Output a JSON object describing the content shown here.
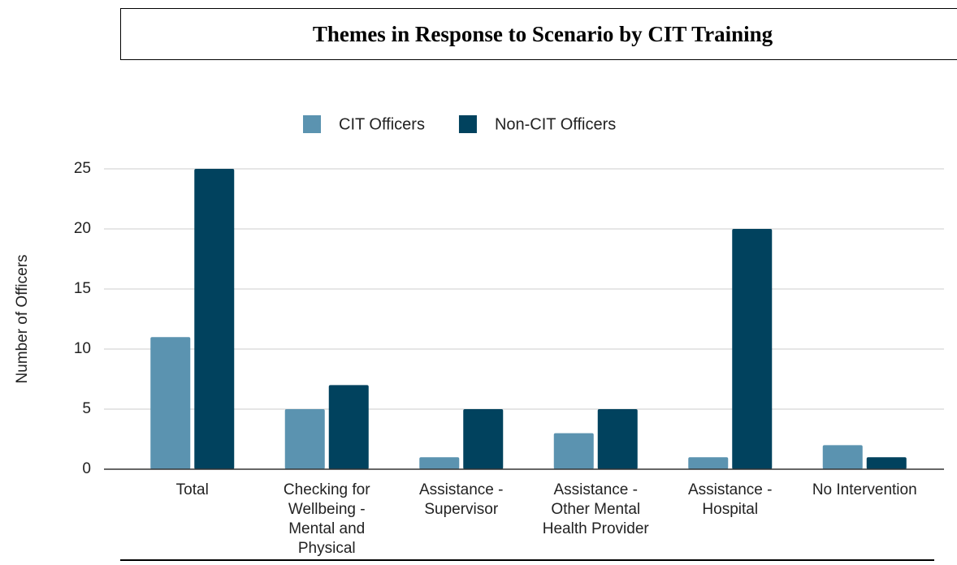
{
  "chart_data": {
    "type": "bar",
    "title": "Themes in Response to Scenario by CIT Training",
    "y_label": "Number of Officers",
    "categories": [
      "Total",
      "Checking for Wellbeing - Mental and Physical",
      "Assistance - Supervisor",
      "Assistance - Other Mental Health Provider",
      "Assistance - Hospital",
      "No Intervention"
    ],
    "series": [
      {
        "name": "CIT Officers",
        "color": "#5b93b0",
        "values": [
          11,
          5,
          1,
          3,
          1,
          2
        ]
      },
      {
        "name": "Non-CIT Officers",
        "color": "#01425e",
        "values": [
          25,
          7,
          5,
          5,
          20,
          1
        ]
      }
    ],
    "ylim": [
      0,
      25
    ],
    "yticks": [
      0,
      5,
      10,
      15,
      20,
      25
    ],
    "grid": true,
    "legend": "top"
  }
}
